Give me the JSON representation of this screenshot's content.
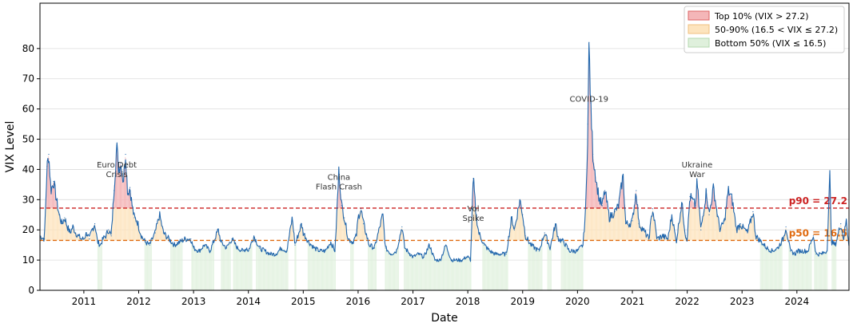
{
  "chart_data": {
    "type": "line",
    "title": "",
    "xlabel": "Date",
    "ylabel": "VIX Level",
    "xlim": [
      2010.2,
      2024.95
    ],
    "ylim": [
      0,
      95
    ],
    "grid": "horizontal",
    "legend_position": "top-right",
    "x_ticks": [
      "2011",
      "2012",
      "2013",
      "2014",
      "2015",
      "2016",
      "2017",
      "2018",
      "2019",
      "2020",
      "2021",
      "2022",
      "2023",
      "2024"
    ],
    "y_ticks": [
      "0",
      "10",
      "20",
      "30",
      "40",
      "50",
      "60",
      "70",
      "80"
    ],
    "series": [
      {
        "name": "",
        "color": "#2166ac",
        "points": [
          [
            2010.2,
            18
          ],
          [
            2010.28,
            17
          ],
          [
            2010.33,
            41
          ],
          [
            2010.36,
            45
          ],
          [
            2010.4,
            33
          ],
          [
            2010.45,
            36
          ],
          [
            2010.5,
            30
          ],
          [
            2010.55,
            25
          ],
          [
            2010.6,
            22
          ],
          [
            2010.65,
            24
          ],
          [
            2010.7,
            21
          ],
          [
            2010.75,
            19
          ],
          [
            2010.8,
            21
          ],
          [
            2010.85,
            19
          ],
          [
            2010.9,
            18
          ],
          [
            2010.95,
            17
          ],
          [
            2011.0,
            17
          ],
          [
            2011.05,
            19
          ],
          [
            2011.1,
            17
          ],
          [
            2011.15,
            20
          ],
          [
            2011.2,
            22
          ],
          [
            2011.25,
            16
          ],
          [
            2011.3,
            15
          ],
          [
            2011.35,
            17
          ],
          [
            2011.4,
            18
          ],
          [
            2011.45,
            20
          ],
          [
            2011.5,
            18
          ],
          [
            2011.55,
            33
          ],
          [
            2011.6,
            48
          ],
          [
            2011.63,
            40
          ],
          [
            2011.67,
            42
          ],
          [
            2011.72,
            36
          ],
          [
            2011.76,
            45
          ],
          [
            2011.8,
            32
          ],
          [
            2011.84,
            34
          ],
          [
            2011.88,
            28
          ],
          [
            2011.92,
            24
          ],
          [
            2011.97,
            23
          ],
          [
            2012.0,
            21
          ],
          [
            2012.05,
            18
          ],
          [
            2012.12,
            16
          ],
          [
            2012.2,
            15
          ],
          [
            2012.3,
            19
          ],
          [
            2012.38,
            25
          ],
          [
            2012.45,
            19
          ],
          [
            2012.55,
            17
          ],
          [
            2012.65,
            15
          ],
          [
            2012.75,
            16
          ],
          [
            2012.85,
            17
          ],
          [
            2012.95,
            17
          ],
          [
            2013.0,
            14
          ],
          [
            2013.1,
            13
          ],
          [
            2013.2,
            15
          ],
          [
            2013.3,
            13
          ],
          [
            2013.45,
            20
          ],
          [
            2013.5,
            16
          ],
          [
            2013.6,
            14
          ],
          [
            2013.7,
            17
          ],
          [
            2013.8,
            14
          ],
          [
            2013.9,
            13
          ],
          [
            2013.97,
            14
          ],
          [
            2014.0,
            13
          ],
          [
            2014.1,
            18
          ],
          [
            2014.2,
            14
          ],
          [
            2014.3,
            13
          ],
          [
            2014.4,
            12
          ],
          [
            2014.5,
            12
          ],
          [
            2014.6,
            14
          ],
          [
            2014.7,
            13
          ],
          [
            2014.8,
            24
          ],
          [
            2014.85,
            15
          ],
          [
            2014.97,
            22
          ],
          [
            2015.0,
            19
          ],
          [
            2015.1,
            16
          ],
          [
            2015.2,
            14
          ],
          [
            2015.3,
            13
          ],
          [
            2015.4,
            13
          ],
          [
            2015.5,
            16
          ],
          [
            2015.58,
            13
          ],
          [
            2015.65,
            40
          ],
          [
            2015.7,
            28
          ],
          [
            2015.75,
            24
          ],
          [
            2015.82,
            17
          ],
          [
            2015.9,
            16
          ],
          [
            2015.97,
            18
          ],
          [
            2016.0,
            24
          ],
          [
            2016.05,
            27
          ],
          [
            2016.1,
            22
          ],
          [
            2016.2,
            15
          ],
          [
            2016.3,
            14
          ],
          [
            2016.45,
            25
          ],
          [
            2016.5,
            14
          ],
          [
            2016.6,
            12
          ],
          [
            2016.7,
            13
          ],
          [
            2016.8,
            21
          ],
          [
            2016.85,
            14
          ],
          [
            2016.95,
            12
          ],
          [
            2017.0,
            11
          ],
          [
            2017.1,
            12
          ],
          [
            2017.2,
            11
          ],
          [
            2017.3,
            15
          ],
          [
            2017.4,
            10
          ],
          [
            2017.5,
            10
          ],
          [
            2017.6,
            15
          ],
          [
            2017.7,
            10
          ],
          [
            2017.8,
            10
          ],
          [
            2017.9,
            10
          ],
          [
            2017.97,
            11
          ],
          [
            2018.0,
            11
          ],
          [
            2018.05,
            10
          ],
          [
            2018.1,
            37
          ],
          [
            2018.15,
            25
          ],
          [
            2018.2,
            19
          ],
          [
            2018.3,
            15
          ],
          [
            2018.4,
            13
          ],
          [
            2018.5,
            12
          ],
          [
            2018.6,
            12
          ],
          [
            2018.7,
            12
          ],
          [
            2018.8,
            24
          ],
          [
            2018.85,
            20
          ],
          [
            2018.95,
            30
          ],
          [
            2019.0,
            25
          ],
          [
            2019.05,
            18
          ],
          [
            2019.15,
            15
          ],
          [
            2019.3,
            13
          ],
          [
            2019.4,
            19
          ],
          [
            2019.5,
            14
          ],
          [
            2019.6,
            22
          ],
          [
            2019.65,
            17
          ],
          [
            2019.75,
            16
          ],
          [
            2019.85,
            13
          ],
          [
            2019.95,
            13
          ],
          [
            2020.0,
            13
          ],
          [
            2020.1,
            15
          ],
          [
            2020.15,
            27
          ],
          [
            2020.19,
            55
          ],
          [
            2020.21,
            82
          ],
          [
            2020.24,
            62
          ],
          [
            2020.28,
            45
          ],
          [
            2020.35,
            35
          ],
          [
            2020.4,
            30
          ],
          [
            2020.45,
            28
          ],
          [
            2020.5,
            33
          ],
          [
            2020.58,
            24
          ],
          [
            2020.68,
            26
          ],
          [
            2020.75,
            28
          ],
          [
            2020.83,
            38
          ],
          [
            2020.88,
            22
          ],
          [
            2020.95,
            22
          ],
          [
            2021.0,
            23
          ],
          [
            2021.07,
            33
          ],
          [
            2021.12,
            22
          ],
          [
            2021.2,
            20
          ],
          [
            2021.3,
            17
          ],
          [
            2021.37,
            27
          ],
          [
            2021.45,
            17
          ],
          [
            2021.55,
            18
          ],
          [
            2021.65,
            17
          ],
          [
            2021.72,
            25
          ],
          [
            2021.8,
            16
          ],
          [
            2021.9,
            29
          ],
          [
            2021.97,
            18
          ],
          [
            2022.0,
            17
          ],
          [
            2022.05,
            31
          ],
          [
            2022.15,
            28
          ],
          [
            2022.18,
            36
          ],
          [
            2022.25,
            20
          ],
          [
            2022.35,
            33
          ],
          [
            2022.4,
            25
          ],
          [
            2022.48,
            34
          ],
          [
            2022.55,
            25
          ],
          [
            2022.6,
            20
          ],
          [
            2022.68,
            23
          ],
          [
            2022.75,
            33
          ],
          [
            2022.82,
            30
          ],
          [
            2022.9,
            20
          ],
          [
            2022.97,
            22
          ],
          [
            2023.0,
            21
          ],
          [
            2023.1,
            19
          ],
          [
            2023.2,
            26
          ],
          [
            2023.25,
            18
          ],
          [
            2023.35,
            16
          ],
          [
            2023.45,
            14
          ],
          [
            2023.55,
            13
          ],
          [
            2023.65,
            14
          ],
          [
            2023.75,
            17
          ],
          [
            2023.8,
            21
          ],
          [
            2023.88,
            13
          ],
          [
            2023.97,
            12
          ],
          [
            2024.0,
            13
          ],
          [
            2024.1,
            13
          ],
          [
            2024.2,
            13
          ],
          [
            2024.3,
            18
          ],
          [
            2024.35,
            12
          ],
          [
            2024.45,
            12
          ],
          [
            2024.55,
            13
          ],
          [
            2024.6,
            38
          ],
          [
            2024.63,
            16
          ],
          [
            2024.7,
            15
          ],
          [
            2024.8,
            22
          ],
          [
            2024.85,
            17
          ],
          [
            2024.9,
            23
          ],
          [
            2024.95,
            15
          ]
        ]
      }
    ],
    "reference_lines": [
      {
        "label": "p90 = 27.2",
        "value": 27.2,
        "color": "#cc2222"
      },
      {
        "label": "p50 = 16.5",
        "value": 16.5,
        "color": "#e06b10"
      }
    ],
    "legend": [
      {
        "label": "Top 10% (VIX > 27.2)",
        "fill": "#f4b6b8",
        "stroke": "#d66"
      },
      {
        "label": "50-90% (16.5 < VIX ≤ 27.2)",
        "fill": "#fde4be",
        "stroke": "#f0c080"
      },
      {
        "label": "Bottom 50% (VIX ≤ 16.5)",
        "fill": "#dff0dc",
        "stroke": "#b5d8b0"
      }
    ],
    "annotations": [
      {
        "lines": [
          "Euro Debt",
          "Crisis"
        ],
        "x": 2011.6,
        "y": 38.5
      },
      {
        "lines": [
          "China",
          "Flash Crash"
        ],
        "x": 2015.65,
        "y": 34.5
      },
      {
        "lines": [
          "Vol",
          "Spike"
        ],
        "x": 2018.1,
        "y": 24
      },
      {
        "lines": [
          "COVID-19"
        ],
        "x": 2020.21,
        "y": 63.5
      },
      {
        "lines": [
          "Ukraine",
          "War"
        ],
        "x": 2022.18,
        "y": 38.5
      }
    ]
  }
}
